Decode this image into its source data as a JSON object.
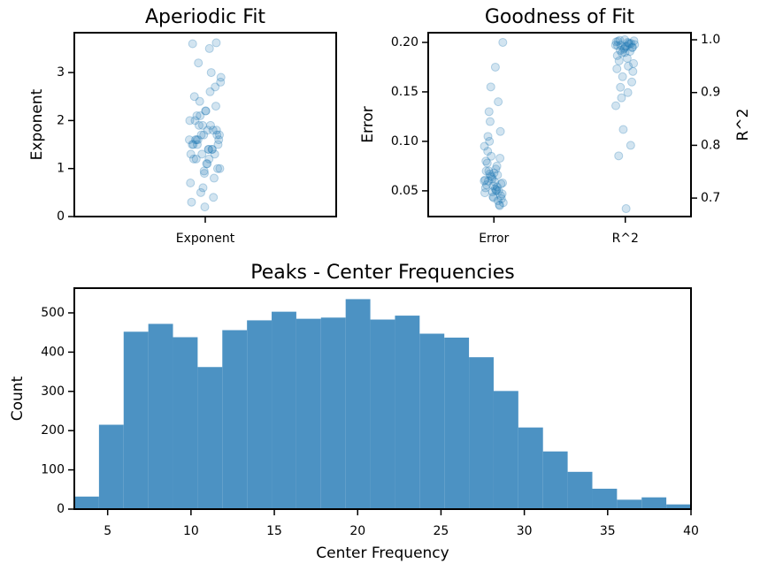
{
  "chart_data": [
    {
      "type": "strip",
      "title": "Aperiodic Fit",
      "ylabel": "Exponent",
      "categories": [
        "Exponent"
      ],
      "series": [
        {
          "color": "#1f77b4",
          "values": [
            1.6,
            1.2,
            2.1,
            1.8,
            0.9,
            1.5,
            1.4,
            2.4,
            1.7,
            1.1,
            2.0,
            1.3,
            1.9,
            0.7,
            2.6,
            1.6,
            1.0,
            2.2,
            1.5,
            1.8,
            0.5,
            2.8,
            1.4,
            1.2,
            2.3,
            1.7,
            0.3,
            3.0,
            1.9,
            1.6,
            1.1,
            2.5,
            0.8,
            1.3,
            2.0,
            3.5,
            1.5,
            1.7,
            0.2,
            3.6,
            1.4,
            2.1,
            1.0,
            1.8,
            1.6,
            2.7,
            0.6,
            1.3,
            1.9,
            3.2,
            1.5,
            2.2,
            1.2,
            0.4,
            1.7,
            2.9,
            1.4,
            1.6,
            3.62,
            0.95
          ]
        }
      ],
      "alpha": 0.2,
      "ylim": [
        0,
        3.83
      ],
      "yticks": [
        0,
        1,
        2,
        3
      ]
    },
    {
      "type": "strip",
      "title": "Goodness of Fit",
      "ylabel": "Error",
      "y2label": "R^2",
      "categories": [
        "Error",
        "R^2"
      ],
      "series": [
        {
          "color": "#1f77b4",
          "values": [
            0.06,
            0.05,
            0.07,
            0.045,
            0.055,
            0.08,
            0.04,
            0.065,
            0.058,
            0.052,
            0.09,
            0.035,
            0.062,
            0.048,
            0.075,
            0.1,
            0.042,
            0.068,
            0.056,
            0.05,
            0.085,
            0.038,
            0.072,
            0.06,
            0.11,
            0.044,
            0.053,
            0.066,
            0.12,
            0.047,
            0.059,
            0.078,
            0.036,
            0.064,
            0.095,
            0.051,
            0.13,
            0.057,
            0.043,
            0.07,
            0.14,
            0.155,
            0.2,
            0.175,
            0.105,
            0.083,
            0.049,
            0.061,
            0.054,
            0.067
          ]
        },
        {
          "color": "#1f77b4",
          "axis": "y2",
          "values": [
            0.99,
            0.995,
            0.98,
            0.985,
            1.0,
            0.97,
            0.992,
            0.975,
            0.998,
            0.988,
            0.96,
            0.993,
            0.982,
            0.996,
            0.95,
            0.99,
            0.94,
            0.987,
            0.997,
            0.978,
            0.93,
            0.991,
            0.965,
            0.999,
            0.92,
            0.984,
            0.945,
            0.994,
            0.89,
            0.955,
            0.68,
            0.78,
            0.8,
            0.83,
            0.875,
            0.9,
            0.91,
            0.986,
            0.976,
            0.989
          ]
        }
      ],
      "alpha": 0.2,
      "ylim": [
        0.024,
        0.2098
      ],
      "yticks": [
        0.05,
        {
          "value": 0.1,
          "label": "0.10"
        },
        0.15,
        {
          "value": 0.2,
          "label": "0.20"
        }
      ],
      "y2lim": [
        0.665,
        1.0134
      ],
      "y2ticks": [
        0.7,
        0.8,
        0.9,
        {
          "value": 1,
          "label": "1.0"
        }
      ]
    },
    {
      "type": "histogram",
      "title": "Peaks - Center Frequencies",
      "xlabel": "Center Frequency",
      "ylabel": "Count",
      "color": "#4c92c3",
      "bins": [
        3.0,
        4.48,
        5.96,
        7.44,
        8.92,
        10.4,
        11.88,
        13.36,
        14.84,
        16.32,
        17.8,
        19.28,
        20.76,
        22.24,
        23.72,
        25.2,
        26.68,
        28.16,
        29.64,
        31.12,
        32.6,
        34.08,
        35.56,
        37.04,
        38.52,
        40.0
      ],
      "values": [
        32,
        215,
        452,
        472,
        438,
        362,
        456,
        481,
        503,
        485,
        488,
        535,
        483,
        493,
        447,
        437,
        387,
        301,
        208,
        147,
        95,
        52,
        24,
        30,
        12
      ],
      "xlim": [
        3,
        40
      ],
      "xticks": [
        5,
        10,
        15,
        20,
        25,
        30,
        35,
        40
      ],
      "ylim": [
        0,
        563
      ],
      "yticks": [
        0,
        100,
        200,
        300,
        400,
        500
      ]
    }
  ]
}
